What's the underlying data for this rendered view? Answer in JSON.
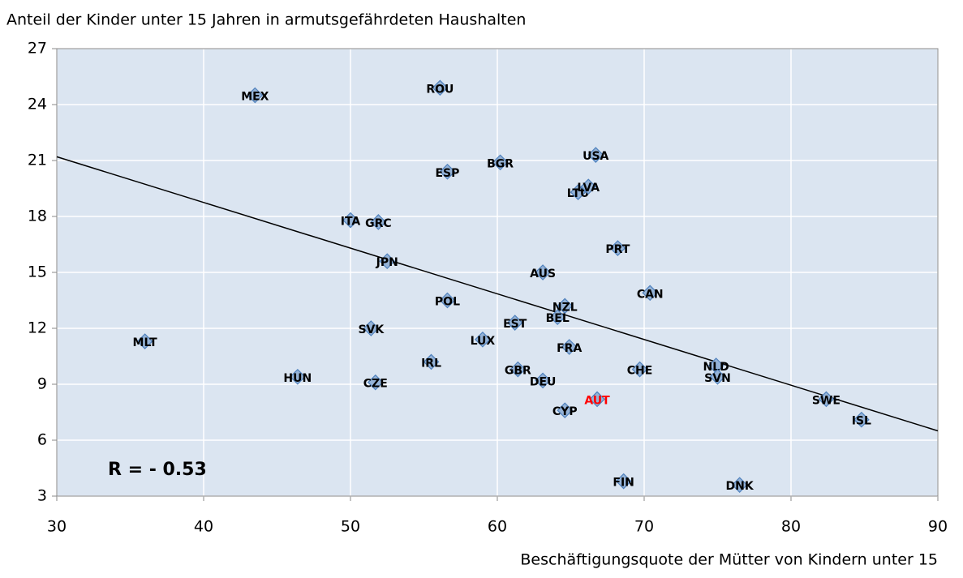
{
  "chart_data": {
    "type": "scatter",
    "y_axis_title": "Anteil der Kinder unter 15 Jahren in armutsgefährdeten Haushalten",
    "x_axis_title": "Beschäftigungsquote der Mütter von Kindern unter 15",
    "annotation": "R = - 0.53",
    "labels": [
      "MEX",
      "ROU",
      "USA",
      "BGR",
      "ESP",
      "LTU",
      "LVA",
      "ITA",
      "GRC",
      "PRT",
      "JPN",
      "AUS",
      "CAN",
      "POL",
      "NZL",
      "BEL",
      "EST",
      "SVK",
      "MLT",
      "LUX",
      "FRA",
      "IRL",
      "GBR",
      "CHE",
      "NLD",
      "SVN",
      "HUN",
      "DEU",
      "CZE",
      "AUT",
      "SWE",
      "CYP",
      "ISL",
      "FIN",
      "DNK"
    ],
    "x": [
      43.5,
      56.1,
      66.7,
      60.2,
      56.6,
      65.5,
      66.2,
      50.0,
      51.9,
      68.2,
      52.5,
      63.1,
      70.4,
      56.6,
      64.6,
      64.1,
      61.2,
      51.4,
      36.0,
      59.0,
      64.9,
      55.5,
      61.4,
      69.7,
      74.9,
      75.0,
      46.4,
      63.1,
      51.7,
      66.8,
      82.4,
      64.6,
      84.8,
      68.6,
      76.5
    ],
    "y": [
      24.5,
      24.9,
      21.3,
      20.9,
      20.4,
      19.3,
      19.6,
      17.8,
      17.7,
      16.3,
      15.6,
      15.0,
      13.9,
      13.5,
      13.2,
      12.6,
      12.3,
      12.0,
      11.3,
      11.4,
      11.0,
      10.2,
      9.8,
      9.8,
      10.0,
      9.4,
      9.4,
      9.2,
      9.1,
      8.2,
      8.2,
      7.6,
      7.1,
      3.8,
      3.6
    ],
    "color": "#95b3d7",
    "highlight": "AUT",
    "highlight_color": "#ff0000",
    "trendline": {
      "x": [
        30,
        90
      ],
      "y": [
        21.2,
        6.5
      ]
    },
    "xlim": [
      30,
      90
    ],
    "xticks": [
      30,
      40,
      50,
      60,
      70,
      80,
      90
    ],
    "ylim": [
      3,
      27
    ],
    "yticks": [
      3,
      6,
      9,
      12,
      15,
      18,
      21,
      24,
      27
    ],
    "grid": true
  }
}
